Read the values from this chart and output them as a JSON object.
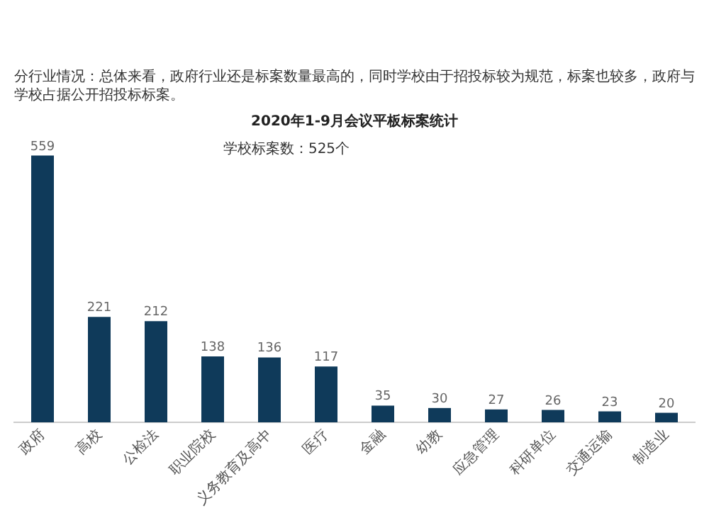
{
  "chart_data": {
    "type": "bar",
    "title": "2020年1-9月会议平板标案统计",
    "subtitle": "分行业情况：总体来看，政府行业还是标案数量最高的，同时学校由于招投标较为规范，标案也较多，政府与学校占据公开招投标标案。",
    "categories": [
      "政府",
      "高校",
      "公检法",
      "职业院校",
      "义务教育及高中",
      "医疗",
      "金融",
      "幼教",
      "应急管理",
      "科研单位",
      "交通运输",
      "制造业"
    ],
    "values": [
      559,
      221,
      212,
      138,
      136,
      117,
      35,
      30,
      27,
      26,
      23,
      20
    ],
    "color": "#0f3a5a",
    "data_labels": true,
    "grid": false,
    "legend": false,
    "annotations": [
      "学校标案数：525个"
    ]
  }
}
